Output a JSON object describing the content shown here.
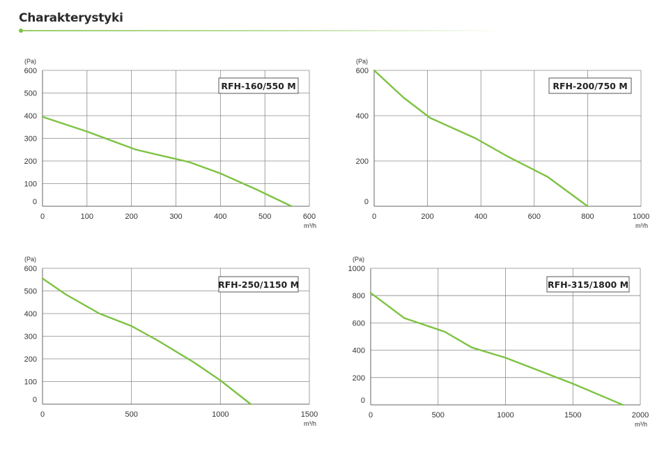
{
  "page": {
    "title": "Charakterystyki",
    "accent_color": "#7dc242"
  },
  "chart_data": [
    {
      "type": "line",
      "title": "RFH-160/550 M",
      "xlabel": "m³/h",
      "ylabel": "(Pa)",
      "xlim": [
        0,
        600
      ],
      "ylim": [
        0,
        600
      ],
      "x_ticks": [
        0,
        100,
        200,
        300,
        400,
        500,
        600
      ],
      "y_ticks": [
        0,
        100,
        200,
        300,
        400,
        500,
        600
      ],
      "grid": true,
      "line_color": "#7dc242",
      "series": [
        {
          "x": [
            0,
            100,
            210,
            330,
            400,
            480,
            560
          ],
          "y": [
            395,
            330,
            250,
            195,
            145,
            75,
            0
          ]
        }
      ]
    },
    {
      "type": "line",
      "title": "RFH-200/750 M",
      "xlabel": "m³/h",
      "ylabel": "(Pa)",
      "xlim": [
        0,
        1000
      ],
      "ylim": [
        0,
        600
      ],
      "x_ticks": [
        0,
        200,
        400,
        600,
        800,
        1000
      ],
      "y_ticks": [
        0,
        200,
        400,
        600
      ],
      "grid": true,
      "line_color": "#7dc242",
      "series": [
        {
          "x": [
            0,
            110,
            210,
            380,
            500,
            650,
            800
          ],
          "y": [
            600,
            480,
            390,
            300,
            220,
            130,
            0
          ]
        }
      ]
    },
    {
      "type": "line",
      "title": "RFH-250/1150 M",
      "xlabel": "m³/h",
      "ylabel": "(Pa)",
      "xlim": [
        0,
        1500
      ],
      "ylim": [
        0,
        600
      ],
      "x_ticks": [
        0,
        500,
        1000,
        1500
      ],
      "y_ticks": [
        0,
        100,
        200,
        300,
        400,
        500,
        600
      ],
      "grid": true,
      "line_color": "#7dc242",
      "series": [
        {
          "x": [
            0,
            130,
            320,
            500,
            650,
            850,
            1000,
            1170
          ],
          "y": [
            555,
            485,
            400,
            345,
            280,
            185,
            105,
            0
          ]
        }
      ]
    },
    {
      "type": "line",
      "title": "RFH-315/1800 M",
      "xlabel": "m³/h",
      "ylabel": "(Pa)",
      "xlim": [
        0,
        2000
      ],
      "ylim": [
        0,
        1000
      ],
      "x_ticks": [
        0,
        500,
        1000,
        1500,
        2000
      ],
      "y_ticks": [
        0,
        200,
        400,
        600,
        800,
        1000
      ],
      "grid": true,
      "line_color": "#7dc242",
      "series": [
        {
          "x": [
            0,
            250,
            550,
            750,
            1000,
            1250,
            1500,
            1870
          ],
          "y": [
            820,
            635,
            535,
            420,
            345,
            250,
            155,
            0
          ]
        }
      ]
    }
  ]
}
